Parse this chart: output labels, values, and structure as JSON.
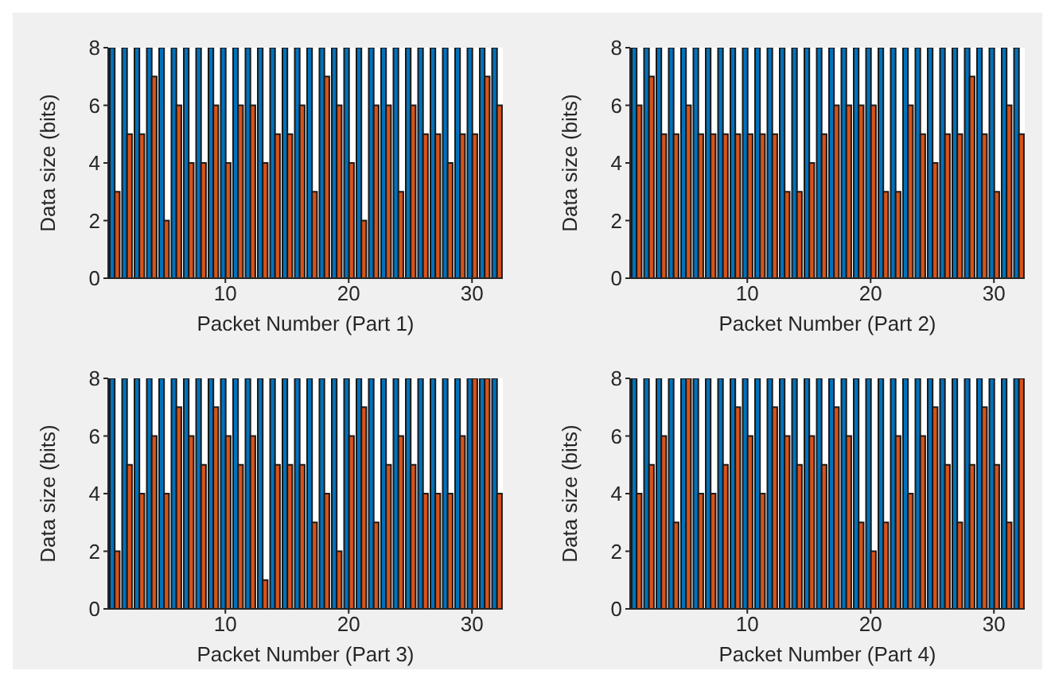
{
  "chart_data": [
    {
      "type": "bar",
      "xlabel": "Packet Number (Part 1)",
      "ylabel": "Data size (bits)",
      "x": [
        1,
        2,
        3,
        4,
        5,
        6,
        7,
        8,
        9,
        10,
        11,
        12,
        13,
        14,
        15,
        16,
        17,
        18,
        19,
        20,
        21,
        22,
        23,
        24,
        25,
        26,
        27,
        28,
        29,
        30,
        31,
        32
      ],
      "xlim": [
        0.5,
        32.5
      ],
      "xticks": [
        10,
        20,
        30
      ],
      "ylim": [
        0,
        8
      ],
      "yticks": [
        0,
        2,
        4,
        6,
        8
      ],
      "grid": false,
      "legend": false,
      "series": [
        {
          "color": "#0072bd",
          "values": [
            8,
            8,
            8,
            8,
            8,
            8,
            8,
            8,
            8,
            8,
            8,
            8,
            8,
            8,
            8,
            8,
            8,
            8,
            8,
            8,
            8,
            8,
            8,
            8,
            8,
            8,
            8,
            8,
            8,
            8,
            8,
            8
          ]
        },
        {
          "color": "#d95319",
          "values": [
            3,
            5,
            5,
            7,
            2,
            6,
            4,
            4,
            6,
            4,
            6,
            6,
            4,
            5,
            5,
            6,
            3,
            7,
            6,
            4,
            2,
            6,
            6,
            3,
            6,
            5,
            5,
            4,
            5,
            5,
            7,
            6
          ]
        }
      ]
    },
    {
      "type": "bar",
      "xlabel": "Packet Number (Part 2)",
      "ylabel": "Data size (bits)",
      "x": [
        1,
        2,
        3,
        4,
        5,
        6,
        7,
        8,
        9,
        10,
        11,
        12,
        13,
        14,
        15,
        16,
        17,
        18,
        19,
        20,
        21,
        22,
        23,
        24,
        25,
        26,
        27,
        28,
        29,
        30,
        31,
        32
      ],
      "xlim": [
        0.5,
        32.5
      ],
      "xticks": [
        10,
        20,
        30
      ],
      "ylim": [
        0,
        8
      ],
      "yticks": [
        0,
        2,
        4,
        6,
        8
      ],
      "grid": false,
      "legend": false,
      "series": [
        {
          "color": "#0072bd",
          "values": [
            8,
            8,
            8,
            8,
            8,
            8,
            8,
            8,
            8,
            8,
            8,
            8,
            8,
            8,
            8,
            8,
            8,
            8,
            8,
            8,
            8,
            8,
            8,
            8,
            8,
            8,
            8,
            8,
            8,
            8,
            8,
            8
          ]
        },
        {
          "color": "#d95319",
          "values": [
            6,
            7,
            5,
            5,
            6,
            5,
            5,
            5,
            5,
            5,
            5,
            5,
            3,
            3,
            4,
            5,
            6,
            6,
            6,
            6,
            3,
            3,
            6,
            5,
            4,
            5,
            5,
            7,
            5,
            3,
            6,
            5
          ]
        }
      ]
    },
    {
      "type": "bar",
      "xlabel": "Packet Number (Part 3)",
      "ylabel": "Data size (bits)",
      "x": [
        1,
        2,
        3,
        4,
        5,
        6,
        7,
        8,
        9,
        10,
        11,
        12,
        13,
        14,
        15,
        16,
        17,
        18,
        19,
        20,
        21,
        22,
        23,
        24,
        25,
        26,
        27,
        28,
        29,
        30,
        31,
        32
      ],
      "xlim": [
        0.5,
        32.5
      ],
      "xticks": [
        10,
        20,
        30
      ],
      "ylim": [
        0,
        8
      ],
      "yticks": [
        0,
        2,
        4,
        6,
        8
      ],
      "grid": false,
      "legend": false,
      "series": [
        {
          "color": "#0072bd",
          "values": [
            8,
            8,
            8,
            8,
            8,
            8,
            8,
            8,
            8,
            8,
            8,
            8,
            8,
            8,
            8,
            8,
            8,
            8,
            8,
            8,
            8,
            8,
            8,
            8,
            8,
            8,
            8,
            8,
            8,
            8,
            8,
            8
          ]
        },
        {
          "color": "#d95319",
          "values": [
            2,
            5,
            4,
            6,
            4,
            7,
            6,
            5,
            7,
            6,
            5,
            6,
            1,
            5,
            5,
            5,
            3,
            4,
            2,
            6,
            7,
            3,
            5,
            6,
            5,
            4,
            4,
            4,
            6,
            8,
            8,
            4
          ]
        }
      ]
    },
    {
      "type": "bar",
      "xlabel": "Packet Number (Part 4)",
      "ylabel": "Data size (bits)",
      "x": [
        1,
        2,
        3,
        4,
        5,
        6,
        7,
        8,
        9,
        10,
        11,
        12,
        13,
        14,
        15,
        16,
        17,
        18,
        19,
        20,
        21,
        22,
        23,
        24,
        25,
        26,
        27,
        28,
        29,
        30,
        31,
        32
      ],
      "xlim": [
        0.5,
        32.5
      ],
      "xticks": [
        10,
        20,
        30
      ],
      "ylim": [
        0,
        8
      ],
      "yticks": [
        0,
        2,
        4,
        6,
        8
      ],
      "grid": false,
      "legend": false,
      "series": [
        {
          "color": "#0072bd",
          "values": [
            8,
            8,
            8,
            8,
            8,
            8,
            8,
            8,
            8,
            8,
            8,
            8,
            8,
            8,
            8,
            8,
            8,
            8,
            8,
            8,
            8,
            8,
            8,
            8,
            8,
            8,
            8,
            8,
            8,
            8,
            8,
            8
          ]
        },
        {
          "color": "#d95319",
          "values": [
            4,
            5,
            6,
            3,
            8,
            4,
            4,
            5,
            7,
            6,
            4,
            7,
            6,
            5,
            6,
            5,
            7,
            6,
            3,
            2,
            3,
            6,
            4,
            6,
            7,
            5,
            3,
            5,
            7,
            5,
            3,
            8
          ]
        }
      ]
    }
  ]
}
